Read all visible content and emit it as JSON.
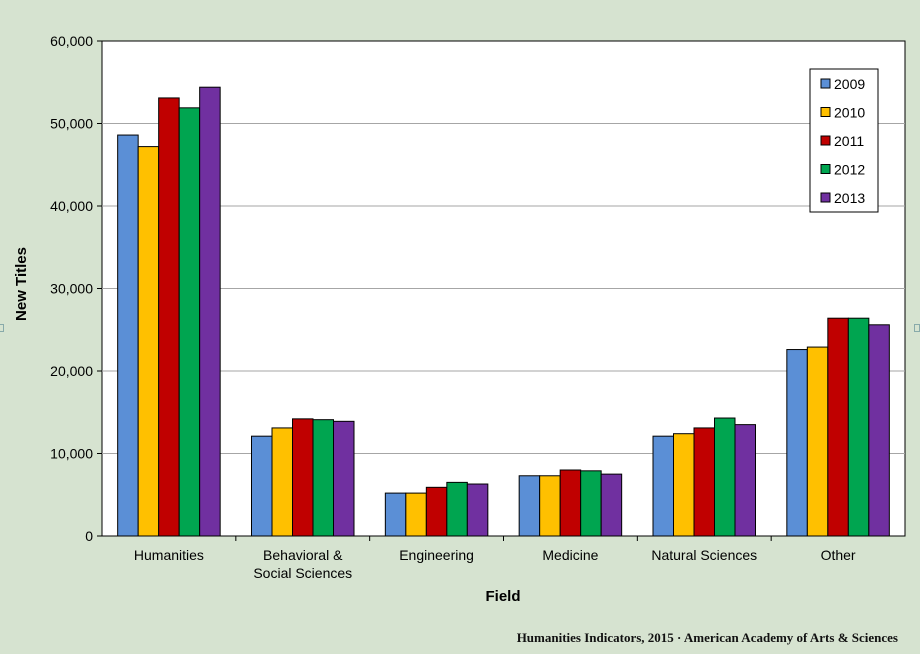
{
  "chart_data": {
    "type": "bar",
    "xlabel": "Field",
    "ylabel": "New Titles",
    "ylim": [
      0,
      60000
    ],
    "yticks": [
      "0",
      "10,000",
      "20,000",
      "30,000",
      "40,000",
      "50,000",
      "60,000"
    ],
    "categories": [
      [
        "Humanities"
      ],
      [
        "Behavioral &",
        "Social Sciences"
      ],
      [
        "Engineering"
      ],
      [
        "Medicine"
      ],
      [
        "Natural Sciences"
      ],
      [
        "Other"
      ]
    ],
    "series": [
      {
        "name": "2009",
        "color": "#5b8fd6",
        "values": [
          48600,
          12100,
          5200,
          7300,
          12100,
          22600
        ]
      },
      {
        "name": "2010",
        "color": "#ffc000",
        "values": [
          47200,
          13100,
          5200,
          7300,
          12400,
          22900
        ]
      },
      {
        "name": "2011",
        "color": "#c00000",
        "values": [
          53100,
          14200,
          5900,
          8000,
          13100,
          26400
        ]
      },
      {
        "name": "2012",
        "color": "#00a550",
        "values": [
          51900,
          14100,
          6500,
          7900,
          14300,
          26400
        ]
      },
      {
        "name": "2013",
        "color": "#7030a0",
        "values": [
          54400,
          13900,
          6300,
          7500,
          13500,
          25600
        ]
      }
    ],
    "grid": true,
    "legend": "top-right"
  },
  "credit": "Humanities Indicators, 2015 · American Academy of Arts & Sciences"
}
